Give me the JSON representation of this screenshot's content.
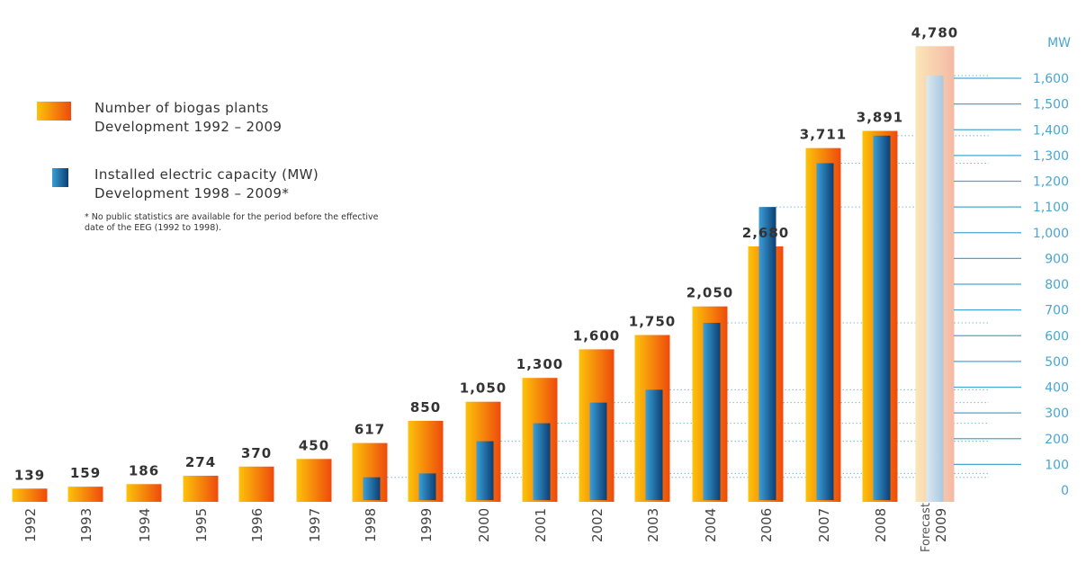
{
  "chart_data": {
    "type": "bar",
    "categories": [
      "1992",
      "1993",
      "1994",
      "1995",
      "1996",
      "1997",
      "1998",
      "1999",
      "2000",
      "2001",
      "2002",
      "2003",
      "2004",
      "2006",
      "2007",
      "2008",
      "2009"
    ],
    "forecast_label": "Forecast",
    "forecast_category": "2009",
    "series": [
      {
        "name": "Number of biogas plants",
        "axis": "left",
        "values": [
          139,
          159,
          186,
          274,
          370,
          450,
          617,
          850,
          1050,
          1300,
          1600,
          1750,
          2050,
          2680,
          3711,
          3891,
          4780
        ],
        "labels": [
          "139",
          "159",
          "186",
          "274",
          "370",
          "450",
          "617",
          "850",
          "1,050",
          "1,300",
          "1,600",
          "1,750",
          "2,050",
          "2,680",
          "3,711",
          "3,891",
          "4,780"
        ]
      },
      {
        "name": "Installed electric capacity (MW)",
        "axis": "right",
        "values": [
          null,
          null,
          null,
          null,
          null,
          null,
          50,
          65,
          190,
          260,
          340,
          390,
          650,
          1100,
          1270,
          1377,
          1610
        ]
      }
    ],
    "right_axis": {
      "unit_label": "MW",
      "ticks": [
        "0",
        "100",
        "200",
        "300",
        "400",
        "500",
        "600",
        "700",
        "800",
        "900",
        "1,000",
        "1,100",
        "1,200",
        "1,300",
        "1,400",
        "1,500",
        "1,600"
      ],
      "range": [
        0,
        1600
      ]
    },
    "colors": {
      "orange_light": "#fcc30a",
      "orange_dark": "#ee4a0c",
      "blue_light": "#3b9fd8",
      "blue_dark": "#0b3f73",
      "axis_blue": "#49a6d3",
      "forecast_light": "#f7d9b0",
      "forecast_blue": "#c5dbec"
    }
  },
  "legend": {
    "plants": {
      "line1": "Number of biogas plants",
      "line2": "Development 1992 – 2009"
    },
    "capacity": {
      "line1": "Installed electric capacity (MW)",
      "line2": "Development 1998 – 2009*"
    },
    "footnote": "* No public statistics are available for the period before the effective date of the EEG (1992 to 1998)."
  }
}
